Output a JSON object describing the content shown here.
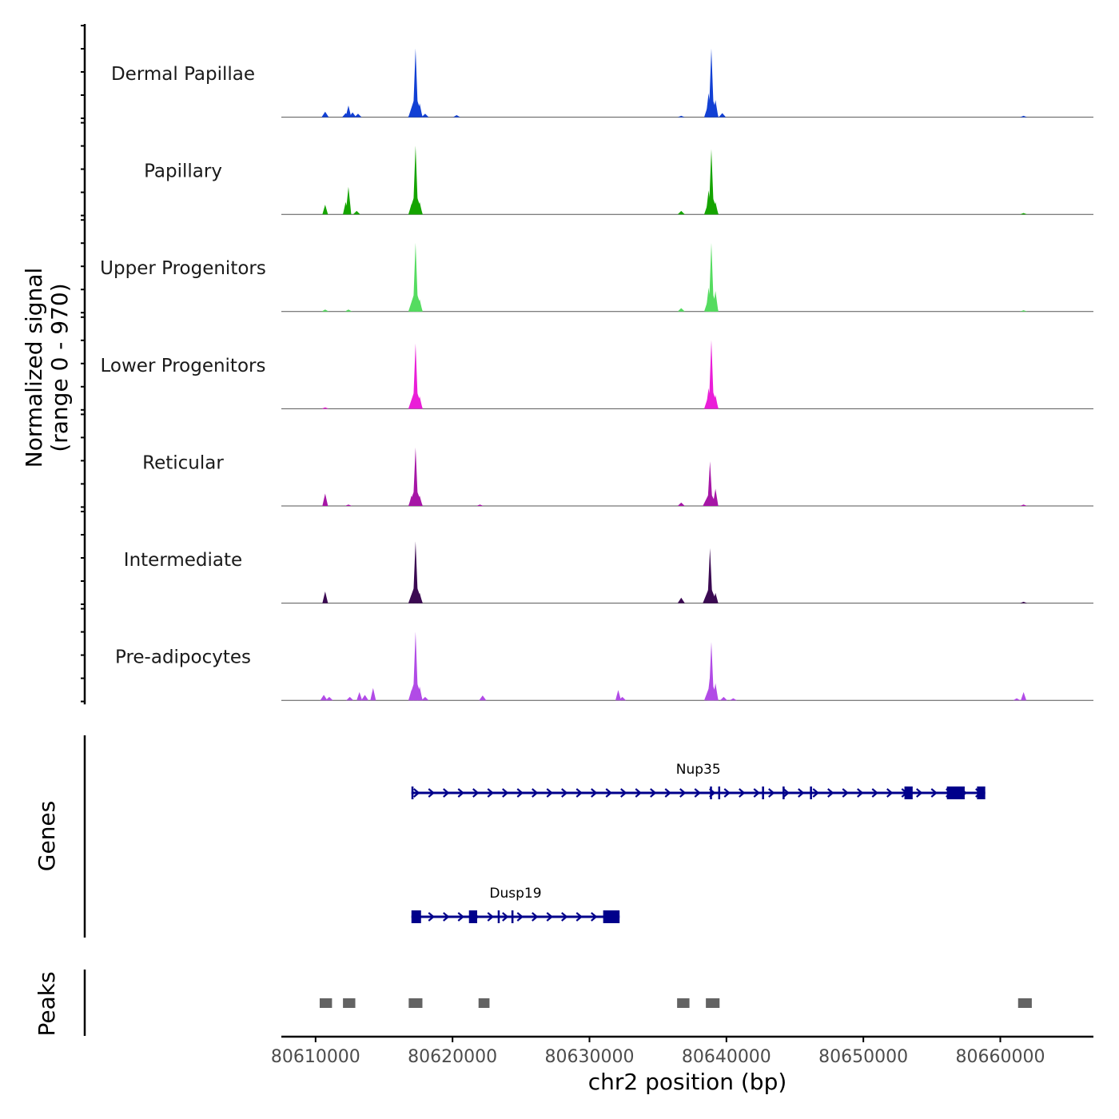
{
  "chart_data": {
    "type": "coverage_tracks",
    "chromosome": "chr2",
    "xrange": [
      80607500,
      80666800
    ],
    "x_ticks": [
      80610000,
      80620000,
      80630000,
      80640000,
      80650000,
      80660000
    ],
    "x_tick_labels": [
      "80610000",
      "80620000",
      "80630000",
      "80640000",
      "80650000",
      "80660000"
    ],
    "xlabel": "chr2 position (bp)",
    "ylabel_line1": "Normalized signal",
    "ylabel_line2": "(range 0 - 970)",
    "yrange": [
      0,
      970
    ],
    "tracks": [
      {
        "name": "Dermal Papillae",
        "color": "#1240d4",
        "peaks": [
          [
            80610700,
            0.08
          ],
          [
            80612200,
            0.06
          ],
          [
            80612400,
            0.17
          ],
          [
            80612700,
            0.07
          ],
          [
            80613100,
            0.05
          ],
          [
            80617000,
            0.06
          ],
          [
            80617300,
            1.0
          ],
          [
            80617600,
            0.2
          ],
          [
            80618000,
            0.05
          ],
          [
            80620300,
            0.03
          ],
          [
            80636700,
            0.02
          ],
          [
            80638700,
            0.35
          ],
          [
            80638900,
            1.0
          ],
          [
            80639200,
            0.25
          ],
          [
            80639700,
            0.06
          ],
          [
            80661700,
            0.02
          ]
        ]
      },
      {
        "name": "Papillary",
        "color": "#15a400",
        "peaks": [
          [
            80610700,
            0.14
          ],
          [
            80612200,
            0.18
          ],
          [
            80612400,
            0.4
          ],
          [
            80613000,
            0.05
          ],
          [
            80617000,
            0.15
          ],
          [
            80617300,
            1.0
          ],
          [
            80617600,
            0.18
          ],
          [
            80636700,
            0.05
          ],
          [
            80638700,
            0.35
          ],
          [
            80638900,
            0.95
          ],
          [
            80639200,
            0.18
          ],
          [
            80661700,
            0.02
          ]
        ]
      },
      {
        "name": "Upper Progenitors",
        "color": "#55dc60",
        "peaks": [
          [
            80610700,
            0.03
          ],
          [
            80612400,
            0.03
          ],
          [
            80617000,
            0.12
          ],
          [
            80617300,
            1.0
          ],
          [
            80617600,
            0.18
          ],
          [
            80636700,
            0.05
          ],
          [
            80638700,
            0.35
          ],
          [
            80638900,
            1.0
          ],
          [
            80639200,
            0.3
          ],
          [
            80661700,
            0.02
          ]
        ]
      },
      {
        "name": "Lower Progenitors",
        "color": "#ea1ed8",
        "peaks": [
          [
            80610700,
            0.02
          ],
          [
            80617000,
            0.12
          ],
          [
            80617300,
            0.95
          ],
          [
            80617600,
            0.18
          ],
          [
            80638700,
            0.3
          ],
          [
            80638900,
            1.0
          ],
          [
            80639200,
            0.2
          ]
        ]
      },
      {
        "name": "Reticular",
        "color": "#a616a6",
        "peaks": [
          [
            80610700,
            0.18
          ],
          [
            80612400,
            0.02
          ],
          [
            80617000,
            0.15
          ],
          [
            80617300,
            0.85
          ],
          [
            80617600,
            0.15
          ],
          [
            80622000,
            0.02
          ],
          [
            80636700,
            0.05
          ],
          [
            80638800,
            0.65
          ],
          [
            80639200,
            0.25
          ],
          [
            80661700,
            0.02
          ]
        ]
      },
      {
        "name": "Intermediate",
        "color": "#3b0a52",
        "peaks": [
          [
            80610700,
            0.17
          ],
          [
            80617000,
            0.12
          ],
          [
            80617300,
            0.9
          ],
          [
            80617600,
            0.15
          ],
          [
            80636700,
            0.08
          ],
          [
            80638800,
            0.8
          ],
          [
            80639200,
            0.15
          ],
          [
            80661700,
            0.02
          ]
        ]
      },
      {
        "name": "Pre-adipocytes",
        "color": "#b14be6",
        "peaks": [
          [
            80610600,
            0.08
          ],
          [
            80611000,
            0.05
          ],
          [
            80612500,
            0.05
          ],
          [
            80613200,
            0.12
          ],
          [
            80613600,
            0.08
          ],
          [
            80614200,
            0.18
          ],
          [
            80617000,
            0.15
          ],
          [
            80617300,
            1.0
          ],
          [
            80617600,
            0.2
          ],
          [
            80618000,
            0.05
          ],
          [
            80622200,
            0.07
          ],
          [
            80632100,
            0.15
          ],
          [
            80632400,
            0.05
          ],
          [
            80638800,
            0.35
          ],
          [
            80638900,
            0.85
          ],
          [
            80639200,
            0.25
          ],
          [
            80639800,
            0.05
          ],
          [
            80640500,
            0.03
          ],
          [
            80661200,
            0.03
          ],
          [
            80661700,
            0.12
          ]
        ]
      }
    ],
    "genes_title": "Genes",
    "genes": [
      {
        "name": "Nup35",
        "start": 80617000,
        "end": 80658900,
        "exons": [
          [
            80617000,
            80617150
          ],
          [
            80638800,
            80638900
          ],
          [
            80639400,
            80639500
          ],
          [
            80642600,
            80642750
          ],
          [
            80644100,
            80644250
          ],
          [
            80646100,
            80646250
          ],
          [
            80653000,
            80653600
          ],
          [
            80656100,
            80657400
          ],
          [
            80658300,
            80658900
          ]
        ]
      },
      {
        "name": "Dusp19",
        "start": 80617000,
        "end": 80632200,
        "exons": [
          [
            80617000,
            80617700
          ],
          [
            80621200,
            80621800
          ],
          [
            80623300,
            80623400
          ],
          [
            80624300,
            80624450
          ],
          [
            80631000,
            80632200
          ]
        ]
      }
    ],
    "peaks_title": "Peaks",
    "peak_regions": [
      [
        80610300,
        80611200
      ],
      [
        80612000,
        80612900
      ],
      [
        80616800,
        80617800
      ],
      [
        80621900,
        80622700
      ],
      [
        80636400,
        80637300
      ],
      [
        80638500,
        80639500
      ],
      [
        80661300,
        80662300
      ]
    ]
  }
}
